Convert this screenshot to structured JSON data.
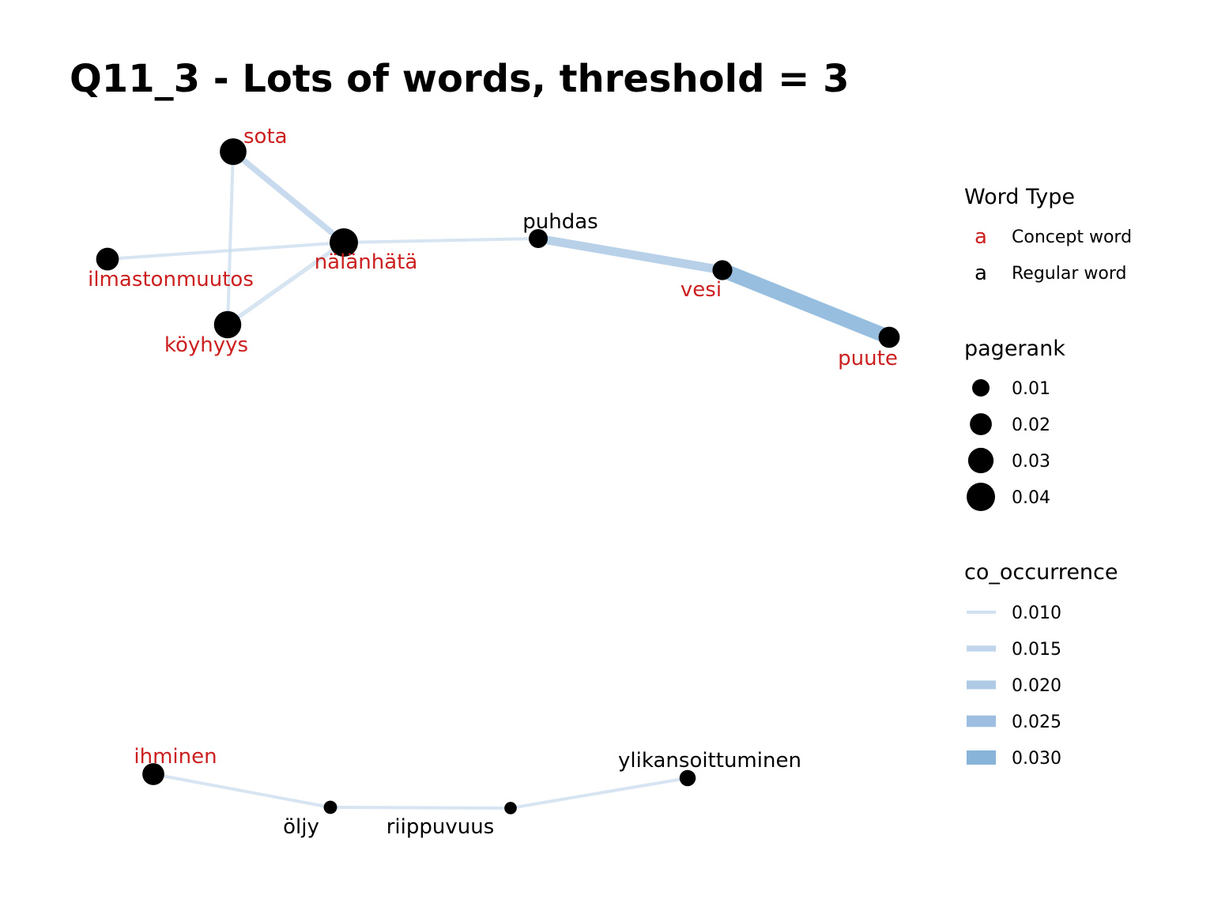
{
  "title": "Q11_3 - Lots of words, threshold = 3",
  "colors": {
    "concept": "#CC1F1F",
    "regular": "#000000",
    "node_fill": "#000000",
    "edge_scale": [
      "#C9DCEE",
      "#B6CFE8",
      "#A1C1E0",
      "#8CB3DA",
      "#74A7D4"
    ]
  },
  "nodes": [
    {
      "id": "sota",
      "label": "sota",
      "type": "concept",
      "pagerank": 0.034
    },
    {
      "id": "nalanhata",
      "label": "nälänhätä",
      "type": "concept",
      "pagerank": 0.04
    },
    {
      "id": "ilmastonmuutos",
      "label": "ilmastonmuutos",
      "type": "concept",
      "pagerank": 0.022
    },
    {
      "id": "koyhyys",
      "label": "köyhyys",
      "type": "concept",
      "pagerank": 0.036
    },
    {
      "id": "puhdas",
      "label": "puhdas",
      "type": "regular",
      "pagerank": 0.013
    },
    {
      "id": "vesi",
      "label": "vesi",
      "type": "concept",
      "pagerank": 0.015
    },
    {
      "id": "puute",
      "label": "puute",
      "type": "concept",
      "pagerank": 0.018
    },
    {
      "id": "ihminen",
      "label": "ihminen",
      "type": "concept",
      "pagerank": 0.02
    },
    {
      "id": "oljy",
      "label": "öljy",
      "type": "regular",
      "pagerank": 0.004
    },
    {
      "id": "riippuvuus",
      "label": "riippuvuus",
      "type": "regular",
      "pagerank": 0.003
    },
    {
      "id": "ylikansoittuminen",
      "label": "ylikansoittuminen",
      "type": "regular",
      "pagerank": 0.008
    }
  ],
  "edges": [
    {
      "from": "sota",
      "to": "nalanhata",
      "co_occurrence": 0.015
    },
    {
      "from": "sota",
      "to": "koyhyys",
      "co_occurrence": 0.01
    },
    {
      "from": "ilmastonmuutos",
      "to": "nalanhata",
      "co_occurrence": 0.01
    },
    {
      "from": "koyhyys",
      "to": "nalanhata",
      "co_occurrence": 0.012
    },
    {
      "from": "nalanhata",
      "to": "puhdas",
      "co_occurrence": 0.01
    },
    {
      "from": "puhdas",
      "to": "vesi",
      "co_occurrence": 0.02
    },
    {
      "from": "vesi",
      "to": "puute",
      "co_occurrence": 0.031
    },
    {
      "from": "ihminen",
      "to": "oljy",
      "co_occurrence": 0.01
    },
    {
      "from": "oljy",
      "to": "riippuvuus",
      "co_occurrence": 0.01
    },
    {
      "from": "riippuvuus",
      "to": "ylikansoittuminen",
      "co_occurrence": 0.01
    }
  ],
  "legend": {
    "word_type": {
      "title": "Word Type",
      "key_glyph": "a",
      "items": [
        {
          "label": "Concept word",
          "type": "concept"
        },
        {
          "label": "Regular word",
          "type": "regular"
        }
      ]
    },
    "pagerank": {
      "title": "pagerank",
      "items": [
        {
          "label": "0.01",
          "value": 0.01
        },
        {
          "label": "0.02",
          "value": 0.02
        },
        {
          "label": "0.03",
          "value": 0.03
        },
        {
          "label": "0.04",
          "value": 0.04
        }
      ]
    },
    "co_occurrence": {
      "title": "co_occurrence",
      "items": [
        {
          "label": "0.010",
          "value": 0.01
        },
        {
          "label": "0.015",
          "value": 0.015
        },
        {
          "label": "0.020",
          "value": 0.02
        },
        {
          "label": "0.025",
          "value": 0.025
        },
        {
          "label": "0.030",
          "value": 0.03
        }
      ]
    }
  }
}
